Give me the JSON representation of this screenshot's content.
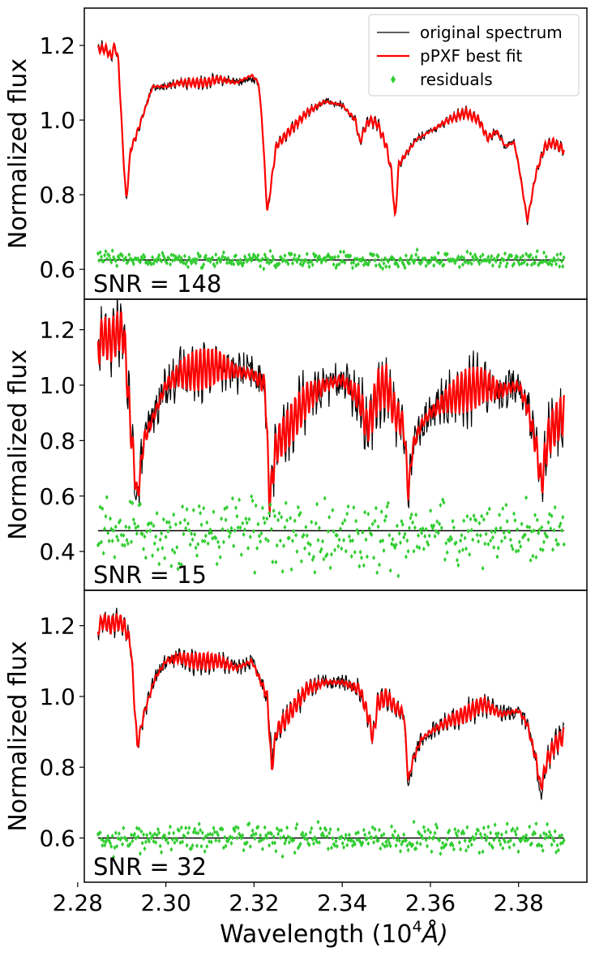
{
  "figure": {
    "xlabel": "Wavelength (10",
    "xlabel_sup": "4",
    "xlabel_unit": "Å)",
    "ylabel": "Normalized flux",
    "xlim": [
      2.2815,
      2.3955
    ],
    "xticks": [
      "2.28",
      "2.30",
      "2.32",
      "2.34",
      "2.36",
      "2.38"
    ],
    "xtick_values": [
      2.28,
      2.3,
      2.32,
      2.34,
      2.36,
      2.38
    ],
    "legend": {
      "position": "upper-right",
      "entries": [
        {
          "label": "original spectrum",
          "color": "#000000",
          "marker": "line"
        },
        {
          "label": "pPXF best fit",
          "color": "#ff0000",
          "marker": "line"
        },
        {
          "label": "residuals",
          "color": "#32cd32",
          "marker": "diamond"
        }
      ]
    },
    "colors": {
      "original": "#000000",
      "fit": "#ff0000",
      "residuals": "#32cd32",
      "zero_line": "#000000"
    }
  },
  "chart_data": [
    {
      "type": "line",
      "annotation": "SNR = 148",
      "ylabel": "Normalized flux",
      "ylim": [
        0.52,
        1.3
      ],
      "yticks": [
        "0.6",
        "0.8",
        "1.0",
        "1.2"
      ],
      "ytick_values": [
        0.6,
        0.8,
        1.0,
        1.2
      ],
      "x_range": [
        2.2846,
        2.3903
      ],
      "residual_level": 0.625,
      "residual_spread": 0.01,
      "wiggle_amp": 0.012,
      "series": [
        {
          "name": "original spectrum",
          "x": [
            2.2846,
            2.2855,
            2.2865,
            2.2875,
            2.2885,
            2.2893,
            2.29,
            2.291,
            2.292,
            2.293,
            2.295,
            2.297,
            2.3,
            2.303,
            2.306,
            2.309,
            2.312,
            2.316,
            2.3195,
            2.321,
            2.3218,
            2.323,
            2.325,
            2.328,
            2.332,
            2.336,
            2.34,
            2.343,
            2.344,
            2.3452,
            2.3462,
            2.348,
            2.35,
            2.3512,
            2.352,
            2.3528,
            2.3545,
            2.357,
            2.36,
            2.364,
            2.368,
            2.371,
            2.373,
            2.375,
            2.377,
            2.379,
            2.38,
            2.382,
            2.384,
            2.386,
            2.388,
            2.3903
          ],
          "y": [
            1.19,
            1.2,
            1.19,
            1.17,
            1.2,
            1.15,
            0.98,
            0.78,
            0.92,
            0.95,
            1.02,
            1.09,
            1.09,
            1.1,
            1.1,
            1.1,
            1.11,
            1.1,
            1.11,
            1.1,
            1.0,
            0.75,
            0.93,
            0.97,
            1.02,
            1.05,
            1.04,
            1.0,
            0.94,
            0.98,
            1.0,
            0.99,
            0.93,
            0.86,
            0.73,
            0.88,
            0.91,
            0.95,
            0.97,
            1.0,
            1.02,
            1.0,
            0.95,
            0.97,
            0.93,
            0.94,
            0.88,
            0.73,
            0.86,
            0.93,
            0.94,
            0.92
          ]
        },
        {
          "name": "pPXF best fit",
          "x": [
            2.2846,
            2.2855,
            2.2865,
            2.2875,
            2.2885,
            2.2893,
            2.29,
            2.291,
            2.292,
            2.293,
            2.295,
            2.297,
            2.3,
            2.303,
            2.306,
            2.309,
            2.312,
            2.316,
            2.3195,
            2.321,
            2.3218,
            2.323,
            2.325,
            2.328,
            2.332,
            2.336,
            2.34,
            2.343,
            2.344,
            2.3452,
            2.3462,
            2.348,
            2.35,
            2.3512,
            2.352,
            2.3528,
            2.3545,
            2.357,
            2.36,
            2.364,
            2.368,
            2.371,
            2.373,
            2.375,
            2.377,
            2.379,
            2.38,
            2.382,
            2.384,
            2.386,
            2.388,
            2.3903
          ],
          "y": [
            1.19,
            1.19,
            1.19,
            1.17,
            1.2,
            1.15,
            0.98,
            0.78,
            0.92,
            0.95,
            1.02,
            1.09,
            1.09,
            1.1,
            1.1,
            1.1,
            1.11,
            1.1,
            1.12,
            1.1,
            1.0,
            0.75,
            0.93,
            0.97,
            1.02,
            1.05,
            1.04,
            1.0,
            0.94,
            0.98,
            1.0,
            0.99,
            0.93,
            0.86,
            0.73,
            0.88,
            0.91,
            0.95,
            0.97,
            1.0,
            1.02,
            1.0,
            0.95,
            0.97,
            0.93,
            0.94,
            0.88,
            0.73,
            0.86,
            0.93,
            0.94,
            0.92
          ]
        }
      ]
    },
    {
      "type": "line",
      "annotation": "SNR = 15",
      "ylabel": "Normalized flux",
      "ylim": [
        0.26,
        1.31
      ],
      "yticks": [
        "0.4",
        "0.6",
        "0.8",
        "1.0",
        "1.2"
      ],
      "ytick_values": [
        0.4,
        0.6,
        0.8,
        1.0,
        1.2
      ],
      "x_range": [
        2.2846,
        2.3903
      ],
      "residual_level": 0.475,
      "residual_spread": 0.06,
      "wiggle_amp": 0.08,
      "series": [
        {
          "name": "original spectrum",
          "x": [
            2.2846,
            2.2855,
            2.2865,
            2.2875,
            2.2885,
            2.2895,
            2.2905,
            2.292,
            2.2935,
            2.295,
            2.2975,
            2.3,
            2.303,
            2.306,
            2.309,
            2.312,
            2.316,
            2.3195,
            2.3225,
            2.3235,
            2.325,
            2.328,
            2.332,
            2.336,
            2.34,
            2.344,
            2.3455,
            2.3465,
            2.348,
            2.35,
            2.352,
            2.354,
            2.355,
            2.356,
            2.358,
            2.36,
            2.364,
            2.368,
            2.372,
            2.376,
            2.38,
            2.382,
            2.384,
            2.3852,
            2.3865,
            2.388,
            2.3903
          ],
          "y": [
            1.12,
            1.18,
            1.17,
            1.16,
            1.18,
            1.2,
            1.18,
            0.85,
            0.59,
            0.8,
            0.9,
            1.0,
            1.04,
            1.05,
            1.06,
            1.07,
            1.05,
            1.04,
            1.0,
            0.6,
            0.78,
            0.85,
            0.95,
            1.0,
            1.02,
            0.95,
            0.85,
            0.88,
            0.98,
            1.0,
            0.9,
            0.85,
            0.61,
            0.78,
            0.86,
            0.9,
            0.95,
            0.98,
            1.0,
            0.98,
            1.0,
            0.92,
            0.78,
            0.62,
            0.8,
            0.85,
            0.88
          ]
        },
        {
          "name": "pPXF best fit",
          "x": [
            2.2846,
            2.2855,
            2.2865,
            2.2875,
            2.2885,
            2.2895,
            2.2905,
            2.292,
            2.2935,
            2.295,
            2.2975,
            2.3,
            2.303,
            2.306,
            2.309,
            2.312,
            2.316,
            2.3195,
            2.3225,
            2.3235,
            2.325,
            2.328,
            2.332,
            2.336,
            2.34,
            2.344,
            2.3455,
            2.3465,
            2.348,
            2.35,
            2.352,
            2.354,
            2.355,
            2.356,
            2.358,
            2.36,
            2.364,
            2.368,
            2.372,
            2.376,
            2.38,
            2.382,
            2.384,
            2.3852,
            2.3865,
            2.388,
            2.3903
          ],
          "y": [
            1.12,
            1.18,
            1.17,
            1.16,
            1.18,
            1.2,
            1.18,
            0.85,
            0.59,
            0.8,
            0.9,
            1.0,
            1.04,
            1.05,
            1.06,
            1.07,
            1.05,
            1.04,
            1.0,
            0.58,
            0.78,
            0.85,
            0.95,
            1.0,
            1.02,
            0.95,
            0.85,
            0.88,
            0.98,
            1.0,
            0.9,
            0.85,
            0.61,
            0.78,
            0.86,
            0.9,
            0.95,
            0.98,
            1.0,
            0.98,
            1.0,
            0.92,
            0.78,
            0.64,
            0.8,
            0.85,
            0.9
          ]
        }
      ]
    },
    {
      "type": "line",
      "annotation": "SNR = 32",
      "ylabel": "Normalized flux",
      "ylim": [
        0.475,
        1.3
      ],
      "yticks": [
        "0.6",
        "0.8",
        "1.0",
        "1.2"
      ],
      "ytick_values": [
        0.6,
        0.8,
        1.0,
        1.2
      ],
      "x_range": [
        2.2846,
        2.3903
      ],
      "residual_level": 0.6,
      "residual_spread": 0.02,
      "wiggle_amp": 0.025,
      "series": [
        {
          "name": "original spectrum",
          "x": [
            2.2846,
            2.2855,
            2.2865,
            2.2875,
            2.2885,
            2.2895,
            2.2905,
            2.292,
            2.2935,
            2.295,
            2.2975,
            2.3,
            2.303,
            2.306,
            2.309,
            2.312,
            2.316,
            2.3195,
            2.323,
            2.324,
            2.325,
            2.328,
            2.332,
            2.336,
            2.34,
            2.344,
            2.346,
            2.347,
            2.348,
            2.35,
            2.352,
            2.354,
            2.355,
            2.356,
            2.358,
            2.36,
            2.364,
            2.368,
            2.372,
            2.376,
            2.38,
            2.382,
            2.384,
            2.385,
            2.3865,
            2.388,
            2.3903
          ],
          "y": [
            1.19,
            1.21,
            1.22,
            1.2,
            1.21,
            1.22,
            1.2,
            1.15,
            0.86,
            0.95,
            1.05,
            1.1,
            1.11,
            1.1,
            1.09,
            1.1,
            1.08,
            1.1,
            1.0,
            0.83,
            0.9,
            0.95,
            1.02,
            1.04,
            1.04,
            1.02,
            0.94,
            0.88,
            0.98,
            1.0,
            0.97,
            0.95,
            0.74,
            0.82,
            0.88,
            0.9,
            0.93,
            0.95,
            0.98,
            0.95,
            0.96,
            0.92,
            0.82,
            0.7,
            0.82,
            0.86,
            0.9
          ]
        },
        {
          "name": "pPXF best fit",
          "x": [
            2.2846,
            2.2855,
            2.2865,
            2.2875,
            2.2885,
            2.2895,
            2.2905,
            2.292,
            2.2935,
            2.295,
            2.2975,
            2.3,
            2.303,
            2.306,
            2.309,
            2.312,
            2.316,
            2.3195,
            2.323,
            2.324,
            2.325,
            2.328,
            2.332,
            2.336,
            2.34,
            2.344,
            2.346,
            2.347,
            2.348,
            2.35,
            2.352,
            2.354,
            2.355,
            2.356,
            2.358,
            2.36,
            2.364,
            2.368,
            2.372,
            2.376,
            2.38,
            2.382,
            2.384,
            2.385,
            2.3865,
            2.388,
            2.3903
          ],
          "y": [
            1.19,
            1.21,
            1.21,
            1.2,
            1.21,
            1.21,
            1.2,
            1.15,
            0.86,
            0.95,
            1.05,
            1.1,
            1.11,
            1.1,
            1.1,
            1.1,
            1.08,
            1.1,
            1.0,
            0.79,
            0.9,
            0.95,
            1.02,
            1.04,
            1.04,
            1.02,
            0.94,
            0.88,
            0.98,
            1.0,
            0.97,
            0.95,
            0.76,
            0.82,
            0.88,
            0.9,
            0.93,
            0.95,
            0.98,
            0.95,
            0.96,
            0.92,
            0.82,
            0.74,
            0.82,
            0.86,
            0.89
          ]
        }
      ]
    }
  ]
}
